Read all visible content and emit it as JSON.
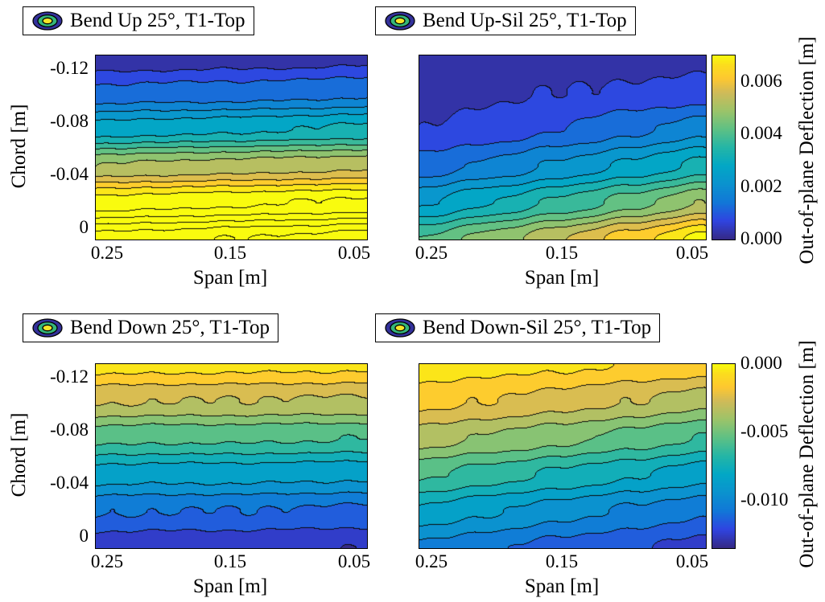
{
  "figure": {
    "background": "#ffffff",
    "colormap": "parula",
    "colorbars": [
      {
        "label": "Out-of-plane Deflection [m]",
        "tick_labels": [
          "0.006",
          "0.004",
          "0.002",
          "0.000"
        ],
        "tick_values": [
          0.006,
          0.004,
          0.002,
          0.0
        ],
        "range": [
          0,
          0.007
        ]
      },
      {
        "label": "Out-of-plane Deflection [m]",
        "tick_labels": [
          "0.000",
          "-0.005",
          "-0.010"
        ],
        "tick_values": [
          0.0,
          -0.005,
          -0.01
        ],
        "range": [
          -0.0135,
          0
        ]
      }
    ],
    "marker_icon": "contour-rings-icon",
    "marker_colors": {
      "outer": "#33319b",
      "mid": "#35b779",
      "inner": "#f6e627"
    }
  },
  "chart_data": [
    {
      "type": "contour",
      "title": "Bend Up 25°, T1-Top",
      "xlabel": "Span [m]",
      "ylabel": "Chord [m]",
      "x_tick_labels": [
        "0.25",
        "0.15",
        "0.05"
      ],
      "x_ticks": [
        0.25,
        0.15,
        0.05
      ],
      "x_direction": "reversed",
      "y_tick_labels": [
        "-0.12",
        "-0.08",
        "-0.04",
        "0"
      ],
      "y_ticks": [
        -0.12,
        -0.08,
        -0.04,
        0
      ],
      "grid_span": [
        0.25,
        0.2,
        0.15,
        0.1,
        0.05
      ],
      "grid_chord": [
        -0.12,
        -0.096,
        -0.072,
        -0.048,
        -0.024,
        0
      ],
      "values": [
        [
          0.0001,
          0.0001,
          0.0002,
          0.0002,
          0.0003
        ],
        [
          0.0011,
          0.0012,
          0.0012,
          0.0013,
          0.0014
        ],
        [
          0.0027,
          0.0028,
          0.0029,
          0.003,
          0.0031
        ],
        [
          0.005,
          0.0051,
          0.0052,
          0.0053,
          0.0054
        ],
        [
          0.0072,
          0.0073,
          0.0074,
          0.0075,
          0.0076
        ],
        [
          0.0092,
          0.0093,
          0.0095,
          0.0096,
          0.0098
        ]
      ],
      "contour_min": 0,
      "contour_interval": 0.0005,
      "caxis": [
        0,
        0.007
      ],
      "colorbar_index": 0,
      "grid_lines": false,
      "legend": "none"
    },
    {
      "type": "contour",
      "title": "Bend Up-Sil 25°, T1-Top",
      "xlabel": "Span [m]",
      "ylabel": "",
      "x_tick_labels": [
        "0.25",
        "0.15",
        "0.05"
      ],
      "x_ticks": [
        0.25,
        0.15,
        0.05
      ],
      "x_direction": "reversed",
      "y_tick_labels": [],
      "y_ticks": [],
      "grid_span": [
        0.25,
        0.2,
        0.15,
        0.1,
        0.05
      ],
      "grid_chord": [
        -0.12,
        -0.096,
        -0.072,
        -0.048,
        -0.024,
        0
      ],
      "values": [
        [
          0.0001,
          0.0001,
          0.0002,
          0.0002,
          0.0003
        ],
        [
          0.0003,
          0.0004,
          0.0005,
          0.0006,
          0.0007
        ],
        [
          0.0005,
          0.0007,
          0.001,
          0.0014,
          0.0018
        ],
        [
          0.0012,
          0.0016,
          0.0021,
          0.0026,
          0.0032
        ],
        [
          0.0024,
          0.003,
          0.0036,
          0.0043,
          0.005
        ],
        [
          0.004,
          0.0047,
          0.0055,
          0.0063,
          0.0072
        ]
      ],
      "contour_min": 0,
      "contour_interval": 0.0005,
      "caxis": [
        0,
        0.007
      ],
      "colorbar_index": 0,
      "grid_lines": false,
      "legend": "none"
    },
    {
      "type": "contour",
      "title": "Bend Down 25°, T1-Top",
      "xlabel": "Span [m]",
      "ylabel": "Chord [m]",
      "x_tick_labels": [
        "0.25",
        "0.15",
        "0.05"
      ],
      "x_ticks": [
        0.25,
        0.15,
        0.05
      ],
      "x_direction": "reversed",
      "y_tick_labels": [
        "-0.12",
        "-0.08",
        "-0.04",
        "0"
      ],
      "y_ticks": [
        -0.12,
        -0.08,
        -0.04,
        0
      ],
      "grid_span": [
        0.25,
        0.2,
        0.15,
        0.1,
        0.05
      ],
      "grid_chord": [
        -0.12,
        -0.096,
        -0.072,
        -0.048,
        -0.024,
        0
      ],
      "values": [
        [
          -0.0006,
          -0.0006,
          -0.0007,
          -0.0007,
          -0.0008
        ],
        [
          -0.0029,
          -0.003,
          -0.003,
          -0.0031,
          -0.0031
        ],
        [
          -0.0057,
          -0.0058,
          -0.0058,
          -0.0059,
          -0.006
        ],
        [
          -0.0085,
          -0.0086,
          -0.0086,
          -0.0087,
          -0.0088
        ],
        [
          -0.0109,
          -0.011,
          -0.011,
          -0.0111,
          -0.0112
        ],
        [
          -0.0127,
          -0.0128,
          -0.0128,
          -0.0129,
          -0.013
        ]
      ],
      "contour_min": -0.014,
      "contour_interval": 0.001,
      "caxis": [
        -0.0135,
        0
      ],
      "colorbar_index": 1,
      "grid_lines": false,
      "legend": "none"
    },
    {
      "type": "contour",
      "title": "Bend Down-Sil 25°, T1-Top",
      "xlabel": "Span [m]",
      "ylabel": "",
      "x_tick_labels": [
        "0.25",
        "0.15",
        "0.05"
      ],
      "x_ticks": [
        0.25,
        0.15,
        0.05
      ],
      "x_direction": "reversed",
      "y_tick_labels": [],
      "y_ticks": [],
      "grid_span": [
        0.25,
        0.2,
        0.15,
        0.1,
        0.05
      ],
      "grid_chord": [
        -0.12,
        -0.096,
        -0.072,
        -0.048,
        -0.024,
        0
      ],
      "values": [
        [
          -0.0004,
          -0.0006,
          -0.0008,
          -0.0011,
          -0.0014
        ],
        [
          -0.0016,
          -0.002,
          -0.0025,
          -0.003,
          -0.0036
        ],
        [
          -0.0035,
          -0.0041,
          -0.0047,
          -0.0054,
          -0.0061
        ],
        [
          -0.0058,
          -0.0065,
          -0.0072,
          -0.0079,
          -0.0086
        ],
        [
          -0.0082,
          -0.0089,
          -0.0096,
          -0.0102,
          -0.0108
        ],
        [
          -0.0102,
          -0.0108,
          -0.0114,
          -0.0119,
          -0.0124
        ]
      ],
      "contour_min": -0.014,
      "contour_interval": 0.001,
      "caxis": [
        -0.0135,
        0
      ],
      "colorbar_index": 1,
      "grid_lines": false,
      "legend": "none"
    }
  ]
}
